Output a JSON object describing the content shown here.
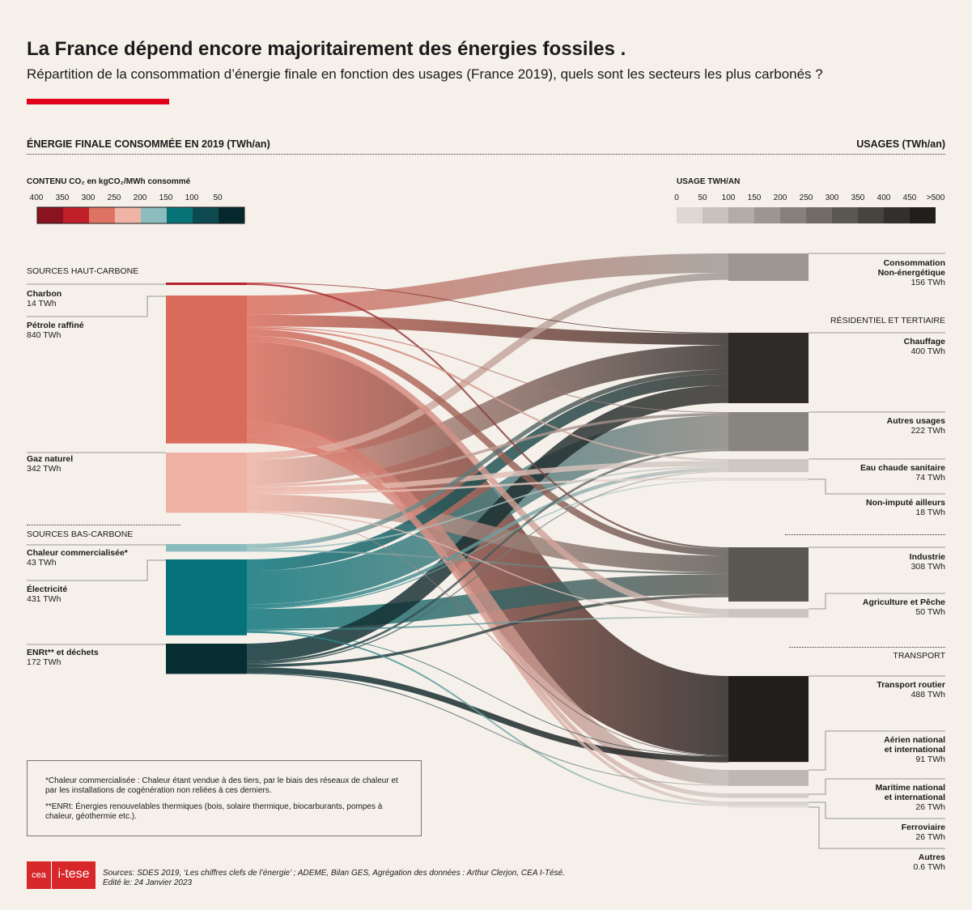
{
  "title": "La France dépend encore majoritairement des énergies fossiles .",
  "subtitle": "Répartition de la consommation d’énergie finale en fonction des usages (France 2019), quels sont les secteurs les plus carbonés ?",
  "left_header": "ÉNERGIE FINALE CONSOMMÉE EN 2019 (TWh/an)",
  "right_header": "USAGES (TWh/an)",
  "co2_scale": {
    "title": "CONTENU CO₂ en kgCO₂/MWh consommé",
    "ticks": [
      "400",
      "350",
      "300",
      "250",
      "200",
      "150",
      "100",
      "50"
    ],
    "colors": [
      "#8a1320",
      "#c0202a",
      "#df7363",
      "#f0b4a7",
      "#8cbcbd",
      "#087377",
      "#0d4a4f",
      "#05282c"
    ]
  },
  "usage_scale": {
    "title": "USAGE TWH/AN",
    "ticks": [
      "0",
      "50",
      "100",
      "150",
      "200",
      "250",
      "300",
      "350",
      "400",
      "450",
      ">500"
    ],
    "colors": [
      "#ddd8d3",
      "#c7c2bd",
      "#b1acA7",
      "#9b9691",
      "#85807b",
      "#706b66",
      "#5b5752",
      "#47433f",
      "#34302d",
      "#221e1c"
    ]
  },
  "source_groups": {
    "high": "SOURCES HAUT-CARBONE",
    "low": "SOURCES BAS-CARBONE"
  },
  "sources": [
    {
      "name": "Charbon",
      "value": "14 TWh",
      "twh": 14,
      "color": "#b5242b"
    },
    {
      "name": "Pétrole raffiné",
      "value": "840 TWh",
      "twh": 840,
      "color": "#d96b5b"
    },
    {
      "name": "Gaz naturel",
      "value": "342 TWh",
      "twh": 342,
      "color": "#efb2a5"
    },
    {
      "name": "Chaleur commercialisée*",
      "value": "43 TWh",
      "twh": 43,
      "color": "#8bbcbd"
    },
    {
      "name": "Électricité",
      "value": "431 TWh",
      "twh": 431,
      "color": "#06737a"
    },
    {
      "name": "ENRt** et déchets",
      "value": "172 TWh",
      "twh": 172,
      "color": "#072e33"
    }
  ],
  "usage_groups": {
    "residential": "RÉSIDENTIEL ET TERTIAIRE",
    "transport": "TRANSPORT"
  },
  "usages": [
    {
      "name": "Consommation Non-énergétique",
      "lines": [
        "Consommation",
        "Non-énergétique"
      ],
      "value": "156 TWh",
      "twh": 156,
      "color": "#9c9792"
    },
    {
      "name": "Chauffage",
      "lines": [
        "Chauffage"
      ],
      "value": "400 TWh",
      "twh": 400,
      "color": "#2e2b28"
    },
    {
      "name": "Autres usages",
      "lines": [
        "Autres usages"
      ],
      "value": "222 TWh",
      "twh": 222,
      "color": "#888480"
    },
    {
      "name": "Eau chaude sanitaire",
      "lines": [
        "Eau chaude sanitaire"
      ],
      "value": "74 TWh",
      "twh": 74,
      "color": "#cdc8c3"
    },
    {
      "name": "Non-imputé ailleurs",
      "lines": [
        "Non-imputé ailleurs"
      ],
      "value": "18 TWh",
      "twh": 18,
      "color": "#e3ded9"
    },
    {
      "name": "Industrie",
      "lines": [
        "Industrie"
      ],
      "value": "308 TWh",
      "twh": 308,
      "color": "#5b5853"
    },
    {
      "name": "Agriculture et Pêche",
      "lines": [
        "Agriculture et Pêche"
      ],
      "value": "50 TWh",
      "twh": 50,
      "color": "#cbc6c1"
    },
    {
      "name": "Transport routier",
      "lines": [
        "Transport routier"
      ],
      "value": "488 TWh",
      "twh": 488,
      "color": "#221e1c"
    },
    {
      "name": "Aérien national et international",
      "lines": [
        "Aérien national",
        "et international"
      ],
      "value": "91 TWh",
      "twh": 91,
      "color": "#bdb8b3"
    },
    {
      "name": "Maritime national et international",
      "lines": [
        "Maritime national",
        "et international"
      ],
      "value": "26 TWh",
      "twh": 26,
      "color": "#d2cdc8"
    },
    {
      "name": "Ferroviaire",
      "lines": [
        "Ferroviaire"
      ],
      "value": "26 TWh",
      "twh": 26,
      "color": "#d9d4cf"
    },
    {
      "name": "Autres",
      "lines": [
        "Autres"
      ],
      "value": "0.6 TWh",
      "twh": 0.6,
      "color": "#e0dbd6"
    }
  ],
  "chart_data": {
    "type": "sankey",
    "title": "La France dépend encore majoritairement des énergies fossiles .",
    "unit": "TWh/an",
    "nodes_left": [
      "Charbon",
      "Pétrole raffiné",
      "Gaz naturel",
      "Chaleur commercialisée*",
      "Électricité",
      "ENRt** et déchets"
    ],
    "nodes_right": [
      "Consommation Non-énergétique",
      "Chauffage",
      "Autres usages",
      "Eau chaude sanitaire",
      "Non-imputé ailleurs",
      "Industrie",
      "Agriculture et Pêche",
      "Transport routier",
      "Aérien national et international",
      "Maritime national et international",
      "Ferroviaire",
      "Autres"
    ],
    "links": [
      {
        "source": "Charbon",
        "target": "Industrie",
        "value": 10
      },
      {
        "source": "Charbon",
        "target": "Chauffage",
        "value": 4
      },
      {
        "source": "Pétrole raffiné",
        "target": "Consommation Non-énergétique",
        "value": 110
      },
      {
        "source": "Pétrole raffiné",
        "target": "Chauffage",
        "value": 65
      },
      {
        "source": "Pétrole raffiné",
        "target": "Autres usages",
        "value": 5
      },
      {
        "source": "Pétrole raffiné",
        "target": "Eau chaude sanitaire",
        "value": 10
      },
      {
        "source": "Pétrole raffiné",
        "target": "Industrie",
        "value": 38
      },
      {
        "source": "Pétrole raffiné",
        "target": "Agriculture et Pêche",
        "value": 35
      },
      {
        "source": "Pétrole raffiné",
        "target": "Transport routier",
        "value": 450
      },
      {
        "source": "Pétrole raffiné",
        "target": "Aérien national et international",
        "value": 85
      },
      {
        "source": "Pétrole raffiné",
        "target": "Maritime national et international",
        "value": 25
      },
      {
        "source": "Pétrole raffiné",
        "target": "Ferroviaire",
        "value": 17
      },
      {
        "source": "Gaz naturel",
        "target": "Consommation Non-énergétique",
        "value": 40
      },
      {
        "source": "Gaz naturel",
        "target": "Chauffage",
        "value": 140
      },
      {
        "source": "Gaz naturel",
        "target": "Autres usages",
        "value": 15
      },
      {
        "source": "Gaz naturel",
        "target": "Eau chaude sanitaire",
        "value": 30
      },
      {
        "source": "Gaz naturel",
        "target": "Industrie",
        "value": 95
      },
      {
        "source": "Gaz naturel",
        "target": "Agriculture et Pêche",
        "value": 7
      },
      {
        "source": "Gaz naturel",
        "target": "Transport routier",
        "value": 3
      },
      {
        "source": "Gaz naturel",
        "target": "Non-imputé ailleurs",
        "value": 12
      },
      {
        "source": "Chaleur commercialisée*",
        "target": "Chauffage",
        "value": 25
      },
      {
        "source": "Chaleur commercialisée*",
        "target": "Eau chaude sanitaire",
        "value": 8
      },
      {
        "source": "Chaleur commercialisée*",
        "target": "Industrie",
        "value": 10
      },
      {
        "source": "Électricité",
        "target": "Chauffage",
        "value": 65
      },
      {
        "source": "Électricité",
        "target": "Autres usages",
        "value": 190
      },
      {
        "source": "Électricité",
        "target": "Eau chaude sanitaire",
        "value": 20
      },
      {
        "source": "Électricité",
        "target": "Non-imputé ailleurs",
        "value": 6
      },
      {
        "source": "Électricité",
        "target": "Industrie",
        "value": 115
      },
      {
        "source": "Électricité",
        "target": "Agriculture et Pêche",
        "value": 8
      },
      {
        "source": "Électricité",
        "target": "Transport routier",
        "value": 2
      },
      {
        "source": "Électricité",
        "target": "Ferroviaire",
        "value": 9
      },
      {
        "source": "ENRt** et déchets",
        "target": "Chauffage",
        "value": 100
      },
      {
        "source": "ENRt** et déchets",
        "target": "Autres usages",
        "value": 12
      },
      {
        "source": "ENRt** et déchets",
        "target": "Eau chaude sanitaire",
        "value": 6
      },
      {
        "source": "ENRt** et déchets",
        "target": "Industrie",
        "value": 16
      },
      {
        "source": "ENRt** et déchets",
        "target": "Transport routier",
        "value": 33
      },
      {
        "source": "ENRt** et déchets",
        "target": "Aérien national et international",
        "value": 5
      }
    ]
  },
  "notes": {
    "note1": "*Chaleur commercialisée : Chaleur étant vendue à des tiers, par le biais des réseaux de chaleur et par les installations de cogénération non reliées à ces derniers.",
    "note2": "**ENRt: Énergies renouvelables thermiques (bois, solaire thermique, biocarburants, pompes à chaleur, géothermie etc.)."
  },
  "logos": {
    "cea": "cea",
    "itese": "i-tese"
  },
  "sources_line1": "Sources: SDES 2019, ‘Les chiffres clefs de l’énergie’ ; ADEME, Bilan GES, Agrégation des données : Arthur Clerjon, CEA I-Tésé.",
  "sources_line2": "Edité le: 24 Janvier 2023"
}
